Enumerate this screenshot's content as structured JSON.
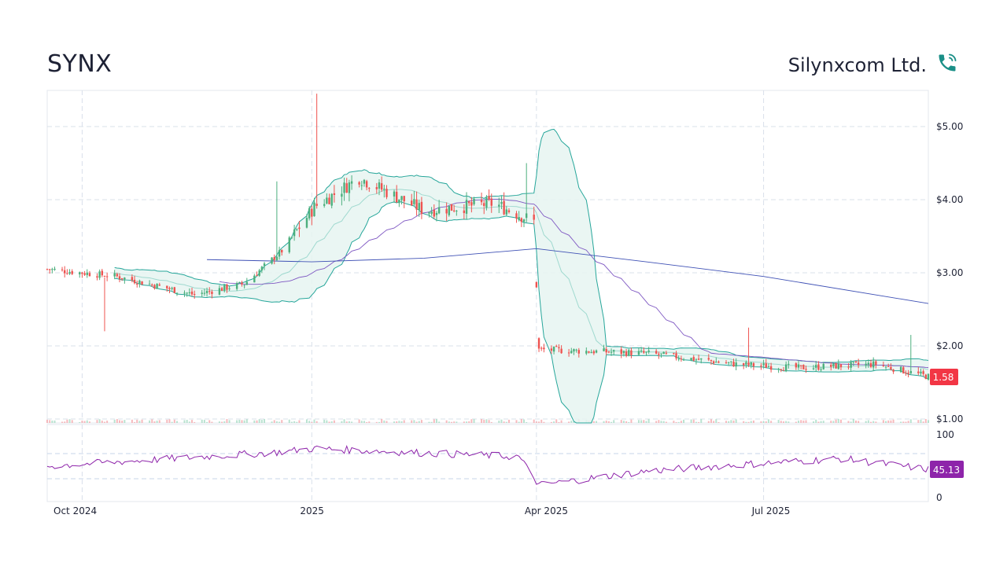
{
  "header": {
    "ticker": "SYNX",
    "company_name": "Silynxcom Ltd.",
    "phone_icon": "phone-ringing-icon"
  },
  "colors": {
    "up": "#26a69a",
    "up_candle": "#4caf7d",
    "down": "#ef5350",
    "bollinger": "#26a69a",
    "bollinger_fill": "#e6f4f1",
    "ma_short": "#7e57c2",
    "ma_long": "#3f51b5",
    "rsi": "#8e24aa",
    "grid": "#d9e0ea",
    "last_price_badge": "#f23645",
    "rsi_badge": "#8e24aa"
  },
  "chart_data": {
    "type": "candlestick",
    "price_axis": {
      "ticks": [
        "$1.00",
        "$2.00",
        "$3.00",
        "$4.00",
        "$5.00"
      ],
      "min": 1.0,
      "max": 5.5
    },
    "time_axis": {
      "ticks": [
        "Oct 2024",
        "2025",
        "Apr 2025",
        "Jul 2025"
      ],
      "range": [
        "2024-09-17",
        "2025-09-05"
      ]
    },
    "last_price": "1.58",
    "grid": true,
    "overlays": [
      "bollinger_bands",
      "moving_average_20",
      "moving_average_200"
    ],
    "price_series_keypoints": [
      {
        "date": "2024-09-17",
        "close": 3.05
      },
      {
        "date": "2024-10-15",
        "close": 2.95
      },
      {
        "date": "2024-11-15",
        "close": 2.7
      },
      {
        "date": "2024-12-05",
        "close": 2.85
      },
      {
        "date": "2024-12-20",
        "close": 3.3
      },
      {
        "date": "2025-01-02",
        "close": 3.9
      },
      {
        "date": "2025-01-20",
        "close": 4.3
      },
      {
        "date": "2025-02-15",
        "close": 3.85
      },
      {
        "date": "2025-03-15",
        "close": 3.95
      },
      {
        "date": "2025-03-31",
        "close": 3.7
      },
      {
        "date": "2025-04-02",
        "close": 1.95
      },
      {
        "date": "2025-05-15",
        "close": 1.9
      },
      {
        "date": "2025-06-20",
        "close": 1.75
      },
      {
        "date": "2025-07-15",
        "close": 1.7
      },
      {
        "date": "2025-08-15",
        "close": 1.75
      },
      {
        "date": "2025-09-05",
        "close": 1.58
      }
    ],
    "rsi": {
      "ticks": [
        "0",
        "100"
      ],
      "upper_band": 70,
      "lower_band": 30,
      "last_value": "45.13",
      "keypoints": [
        {
          "date": "2024-09-17",
          "value": 50
        },
        {
          "date": "2024-12-18",
          "value": 72
        },
        {
          "date": "2025-01-02",
          "value": 78
        },
        {
          "date": "2025-03-25",
          "value": 65
        },
        {
          "date": "2025-04-02",
          "value": 20
        },
        {
          "date": "2025-05-15",
          "value": 42
        },
        {
          "date": "2025-06-20",
          "value": 52
        },
        {
          "date": "2025-08-01",
          "value": 62
        },
        {
          "date": "2025-09-05",
          "value": 45
        }
      ]
    }
  }
}
